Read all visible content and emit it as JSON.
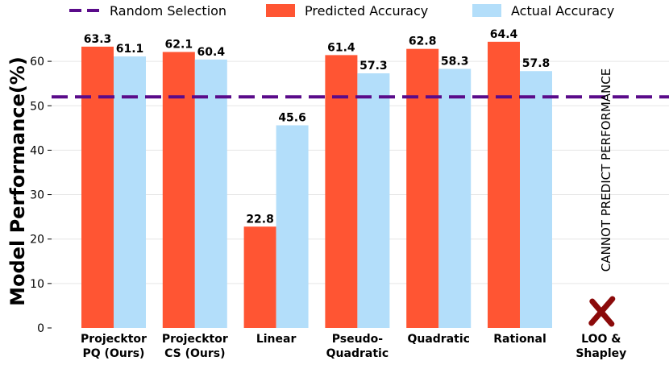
{
  "chart_data": {
    "type": "bar",
    "ylabel": "Model Performance(%)",
    "ylim": [
      0,
      70
    ],
    "yticks": [
      0,
      10,
      20,
      30,
      40,
      50,
      60
    ],
    "grid": true,
    "legend_position": "top",
    "categories": [
      [
        "Projecktor",
        "PQ (Ours)"
      ],
      [
        "Projecktor",
        "CS (Ours)"
      ],
      [
        "Linear"
      ],
      [
        "Pseudo-",
        "Quadratic"
      ],
      [
        "Quadratic"
      ],
      [
        "Rational"
      ],
      [
        "LOO &",
        "Shapley"
      ]
    ],
    "series": [
      {
        "name": "Predicted Accuracy",
        "color": "#ff5533",
        "values": [
          63.3,
          62.1,
          22.8,
          61.4,
          62.8,
          64.4,
          null
        ],
        "labels": [
          "63.3",
          "62.1",
          "22.8",
          "61.4",
          "62.8",
          "64.4",
          null
        ]
      },
      {
        "name": "Actual Accuracy",
        "color": "#b3defa",
        "values": [
          61.1,
          60.4,
          45.6,
          57.3,
          58.3,
          57.8,
          null
        ],
        "labels": [
          "61.1",
          "60.4",
          "45.6",
          "57.3",
          "58.3",
          "57.8",
          null
        ]
      }
    ],
    "reference_line": {
      "name": "Random Selection",
      "value": 52,
      "color": "#5a0b8a",
      "style": "dashed"
    },
    "annotation": {
      "text": "CANNOT PREDICT PERFORMANCE",
      "category_index": 6
    },
    "marker": {
      "icon": "cross-mark-icon",
      "color": "#8b0a0a",
      "category_index": 6
    }
  }
}
